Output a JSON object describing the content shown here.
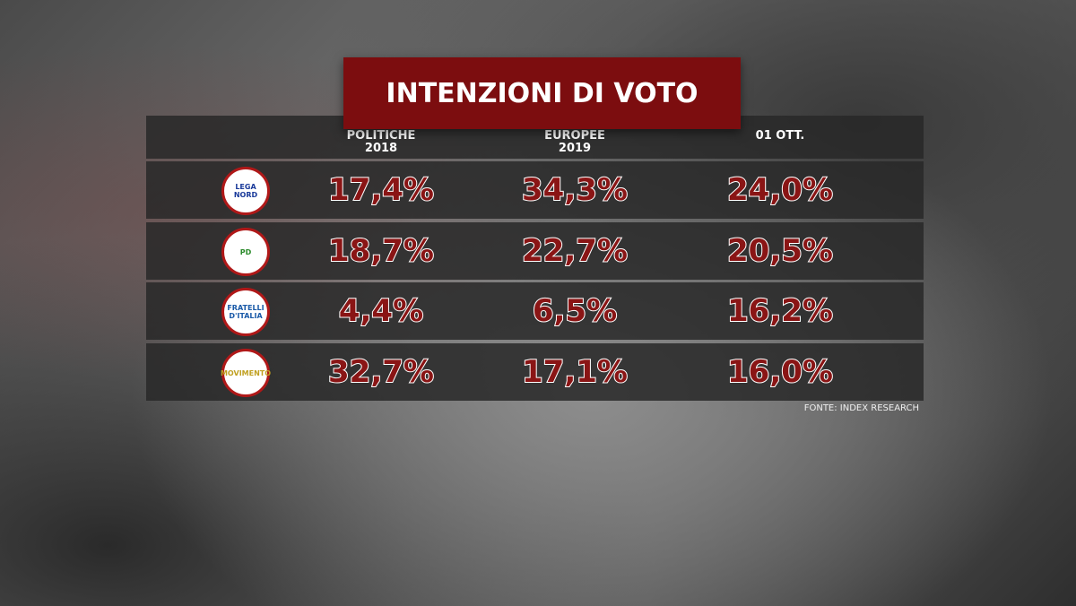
{
  "header": {
    "title": "INTENZIONI DI VOTO"
  },
  "table": {
    "columns": [
      [
        "POLITICHE",
        "2018"
      ],
      [
        "EUROPEE",
        "2019"
      ],
      [
        "01 OTT."
      ]
    ],
    "rows": [
      {
        "party": "LEGA NORD",
        "values": [
          "17,4%",
          "34,3%",
          "24,0%"
        ]
      },
      {
        "party": "PD",
        "values": [
          "18,7%",
          "22,7%",
          "20,5%"
        ]
      },
      {
        "party": "FRATELLI D'ITALIA",
        "values": [
          "4,4%",
          "6,5%",
          "16,2%"
        ]
      },
      {
        "party": "MOVIMENTO",
        "values": [
          "32,7%",
          "17,1%",
          "16,0%"
        ]
      }
    ]
  },
  "source": "FONTE: INDEX RESEARCH"
}
